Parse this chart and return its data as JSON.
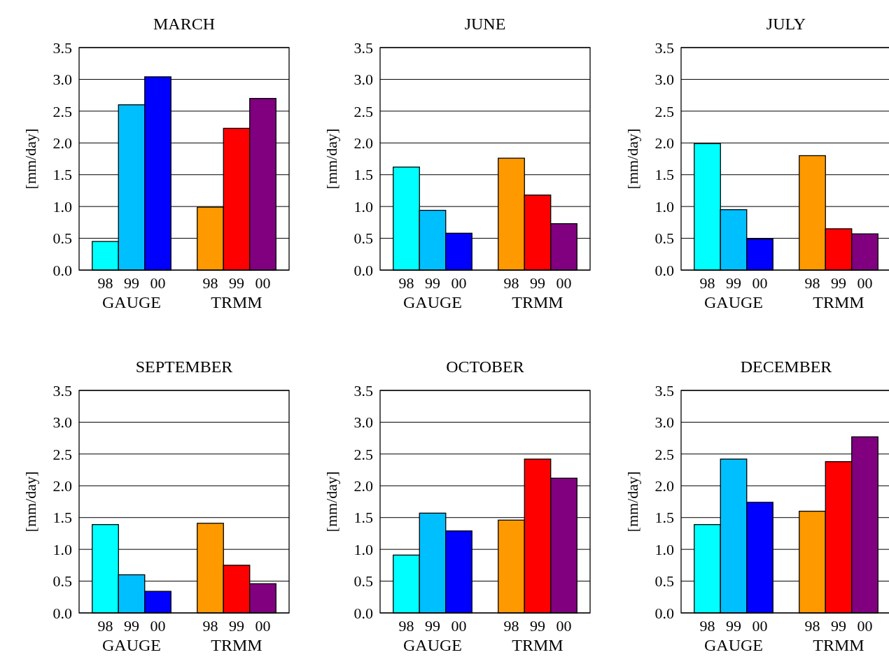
{
  "chart_data": [
    {
      "type": "bar",
      "title": "MARCH",
      "ylabel": "[mm/day]",
      "categories": [
        "98",
        "99",
        "00",
        null,
        "98",
        "99",
        "00"
      ],
      "values": [
        0.45,
        2.6,
        3.04,
        null,
        0.99,
        2.23,
        2.7
      ],
      "colors": [
        "#00ffff",
        "#00bfff",
        "#0000ff",
        null,
        "#ff9900",
        "#ff0000",
        "#800080"
      ],
      "annotations": [
        "GAUGE",
        "TRMM"
      ],
      "ylim": [
        0,
        3.5
      ],
      "yticks": [
        {
          "value": 0,
          "label": "0.0"
        },
        {
          "value": 0.5,
          "label": "0.5"
        },
        {
          "value": 1,
          "label": "1.0"
        },
        {
          "value": 1.5,
          "label": "1.5"
        },
        {
          "value": 2,
          "label": "2.0"
        },
        {
          "value": 2.5,
          "label": "2.5"
        },
        {
          "value": 3,
          "label": "3.0"
        },
        {
          "value": 3.5,
          "label": "3.5"
        }
      ],
      "grid": "y"
    },
    {
      "type": "bar",
      "title": "JUNE",
      "ylabel": "[mm/day]",
      "categories": [
        "98",
        "99",
        "00",
        null,
        "98",
        "99",
        "00"
      ],
      "values": [
        1.62,
        0.94,
        0.58,
        null,
        1.76,
        1.18,
        0.73
      ],
      "colors": [
        "#00ffff",
        "#00bfff",
        "#0000ff",
        null,
        "#ff9900",
        "#ff0000",
        "#800080"
      ],
      "annotations": [
        "GAUGE",
        "TRMM"
      ],
      "ylim": [
        0,
        3.5
      ],
      "yticks": [
        {
          "value": 0,
          "label": "0.0"
        },
        {
          "value": 0.5,
          "label": "0.5"
        },
        {
          "value": 1,
          "label": "1.0"
        },
        {
          "value": 1.5,
          "label": "1.5"
        },
        {
          "value": 2,
          "label": "2.0"
        },
        {
          "value": 2.5,
          "label": "2.5"
        },
        {
          "value": 3,
          "label": "3.0"
        },
        {
          "value": 3.5,
          "label": "3.5"
        }
      ],
      "grid": "y"
    },
    {
      "type": "bar",
      "title": "JULY",
      "ylabel": "[mm/day]",
      "categories": [
        "98",
        "99",
        "00",
        null,
        "98",
        "99",
        "00"
      ],
      "values": [
        1.99,
        0.95,
        0.49,
        null,
        1.8,
        0.65,
        0.57
      ],
      "colors": [
        "#00ffff",
        "#00bfff",
        "#0000ff",
        null,
        "#ff9900",
        "#ff0000",
        "#800080"
      ],
      "annotations": [
        "GAUGE",
        "TRMM"
      ],
      "ylim": [
        0,
        3.5
      ],
      "yticks": [
        {
          "value": 0,
          "label": "0.0"
        },
        {
          "value": 0.5,
          "label": "0.5"
        },
        {
          "value": 1,
          "label": "1.0"
        },
        {
          "value": 1.5,
          "label": "1.5"
        },
        {
          "value": 2,
          "label": "2.0"
        },
        {
          "value": 2.5,
          "label": "2.5"
        },
        {
          "value": 3,
          "label": "3.0"
        },
        {
          "value": 3.5,
          "label": "3.5"
        }
      ],
      "grid": "y"
    },
    {
      "type": "bar",
      "title": "SEPTEMBER",
      "ylabel": "[mm/day]",
      "categories": [
        "98",
        "99",
        "00",
        null,
        "98",
        "99",
        "00"
      ],
      "values": [
        1.39,
        0.6,
        0.34,
        null,
        1.41,
        0.75,
        0.46
      ],
      "colors": [
        "#00ffff",
        "#00bfff",
        "#0000ff",
        null,
        "#ff9900",
        "#ff0000",
        "#800080"
      ],
      "annotations": [
        "GAUGE",
        "TRMM"
      ],
      "ylim": [
        0,
        3.5
      ],
      "yticks": [
        {
          "value": 0,
          "label": "0.0"
        },
        {
          "value": 0.5,
          "label": "0.5"
        },
        {
          "value": 1,
          "label": "1.0"
        },
        {
          "value": 1.5,
          "label": "1.5"
        },
        {
          "value": 2,
          "label": "2.0"
        },
        {
          "value": 2.5,
          "label": "2.5"
        },
        {
          "value": 3,
          "label": "3.0"
        },
        {
          "value": 3.5,
          "label": "3.5"
        }
      ],
      "grid": "y"
    },
    {
      "type": "bar",
      "title": "OCTOBER",
      "ylabel": "[mm/day]",
      "categories": [
        "98",
        "99",
        "00",
        null,
        "98",
        "99",
        "00"
      ],
      "values": [
        0.91,
        1.57,
        1.29,
        null,
        1.46,
        2.42,
        2.12
      ],
      "colors": [
        "#00ffff",
        "#00bfff",
        "#0000ff",
        null,
        "#ff9900",
        "#ff0000",
        "#800080"
      ],
      "annotations": [
        "GAUGE",
        "TRMM"
      ],
      "ylim": [
        0,
        3.5
      ],
      "yticks": [
        {
          "value": 0,
          "label": "0.0"
        },
        {
          "value": 0.5,
          "label": "0.5"
        },
        {
          "value": 1,
          "label": "1.0"
        },
        {
          "value": 1.5,
          "label": "1.5"
        },
        {
          "value": 2,
          "label": "2.0"
        },
        {
          "value": 2.5,
          "label": "2.5"
        },
        {
          "value": 3,
          "label": "3.0"
        },
        {
          "value": 3.5,
          "label": "3.5"
        }
      ],
      "grid": "y"
    },
    {
      "type": "bar",
      "title": "DECEMBER",
      "ylabel": "[mm/day]",
      "categories": [
        "98",
        "99",
        "00",
        null,
        "98",
        "99",
        "00"
      ],
      "values": [
        1.39,
        2.42,
        1.74,
        null,
        1.6,
        2.38,
        2.77
      ],
      "colors": [
        "#00ffff",
        "#00bfff",
        "#0000ff",
        null,
        "#ff9900",
        "#ff0000",
        "#800080"
      ],
      "annotations": [
        "GAUGE",
        "TRMM"
      ],
      "ylim": [
        0,
        3.5
      ],
      "yticks": [
        {
          "value": 0,
          "label": "0.0"
        },
        {
          "value": 0.5,
          "label": "0.5"
        },
        {
          "value": 1,
          "label": "1.0"
        },
        {
          "value": 1.5,
          "label": "1.5"
        },
        {
          "value": 2,
          "label": "2.0"
        },
        {
          "value": 2.5,
          "label": "2.5"
        },
        {
          "value": 3,
          "label": "3.0"
        },
        {
          "value": 3.5,
          "label": "3.5"
        }
      ],
      "grid": "y"
    }
  ]
}
